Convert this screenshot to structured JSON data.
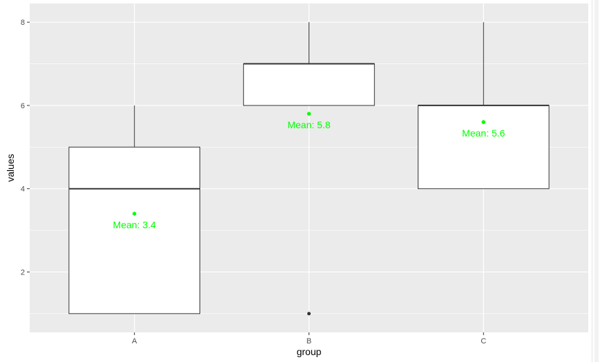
{
  "chart_data": {
    "type": "boxplot",
    "title": "",
    "xlabel": "group",
    "ylabel": "values",
    "categories": [
      "A",
      "B",
      "C"
    ],
    "ylim": [
      0.55,
      8.45
    ],
    "y_ticks": [
      2,
      4,
      6,
      8
    ],
    "y_tick_labels": [
      "2",
      "4",
      "6",
      "8"
    ],
    "grid": true,
    "boxes": [
      {
        "group": "A",
        "whisker_low": 1,
        "q1": 1,
        "median": 4,
        "q3": 5,
        "whisker_high": 6,
        "outliers": [],
        "mean": 3.4,
        "mean_label": "Mean: 3.4"
      },
      {
        "group": "B",
        "whisker_low": 6,
        "q1": 6,
        "median": 7,
        "q3": 7,
        "whisker_high": 8,
        "outliers": [
          1
        ],
        "mean": 5.8,
        "mean_label": "Mean: 5.8"
      },
      {
        "group": "C",
        "whisker_low": 4,
        "q1": 4,
        "median": 6,
        "q3": 6,
        "whisker_high": 8,
        "outliers": [],
        "mean": 5.6,
        "mean_label": "Mean: 5.6"
      }
    ],
    "colors": {
      "panel": "#ebebeb",
      "grid_major": "#ffffff",
      "box_fill": "#ffffff",
      "box_line": "#333333",
      "mean": "#00ff00",
      "tick_text": "#4d4d4d"
    }
  }
}
